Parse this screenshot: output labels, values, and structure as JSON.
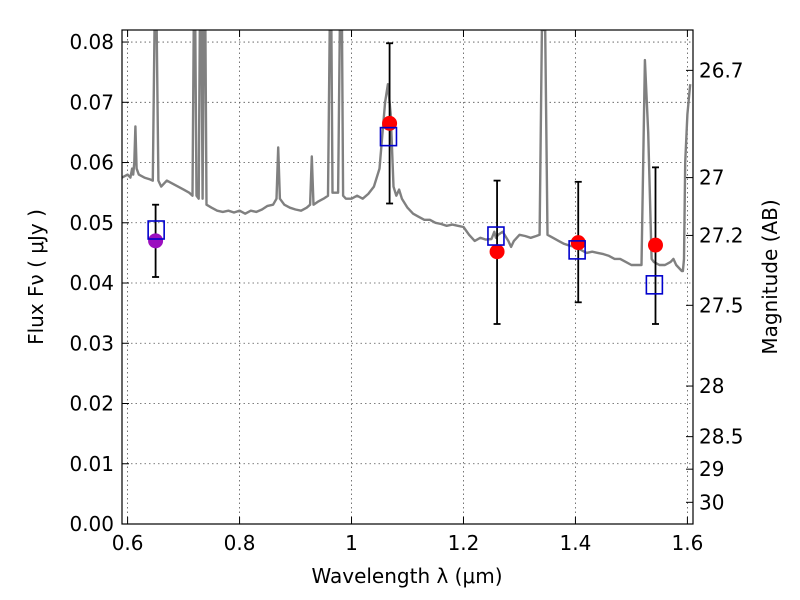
{
  "chart_data": {
    "type": "scatter",
    "xlabel": "Wavelength  λ (μm)",
    "ylabel": "Flux  Fν ( μJy )",
    "y2label": "Magnitude (AB)",
    "xlim": [
      0.59,
      1.61
    ],
    "ylim": [
      0.0,
      0.082
    ],
    "grid": true,
    "legend": "none",
    "x_ticks": [
      0.6,
      0.8,
      1.0,
      1.2,
      1.4,
      1.6
    ],
    "x_tick_labels": [
      "0.6",
      "0.8",
      "1",
      "1.2",
      "1.4",
      "1.6"
    ],
    "y_ticks": [
      0.0,
      0.01,
      0.02,
      0.03,
      0.04,
      0.05,
      0.06,
      0.07,
      0.08
    ],
    "y_tick_labels": [
      "0.00",
      "0.01",
      "0.02",
      "0.03",
      "0.04",
      "0.05",
      "0.06",
      "0.07",
      "0.08"
    ],
    "right_ticks": [
      {
        "label": "26.7",
        "flux": 0.0753
      },
      {
        "label": "27",
        "flux": 0.0575
      },
      {
        "label": "27.2",
        "flux": 0.0479
      },
      {
        "label": "27.5",
        "flux": 0.0363
      },
      {
        "label": "28",
        "flux": 0.0229
      },
      {
        "label": "28.5",
        "flux": 0.0145
      },
      {
        "label": "29",
        "flux": 0.0091
      },
      {
        "label": "30",
        "flux": 0.0036
      }
    ],
    "colors": {
      "spectrum": "#808080",
      "observed": "#ff0000",
      "observed_first": "#9b0fbf",
      "model_box": "#0000cc",
      "errorbar": "#000000",
      "grid": "#555555"
    },
    "model_spectrum": [
      [
        0.59,
        0.0575
      ],
      [
        0.6,
        0.058
      ],
      [
        0.605,
        0.0575
      ],
      [
        0.608,
        0.059
      ],
      [
        0.61,
        0.058
      ],
      [
        0.612,
        0.06
      ],
      [
        0.614,
        0.066
      ],
      [
        0.616,
        0.059
      ],
      [
        0.62,
        0.058
      ],
      [
        0.63,
        0.0575
      ],
      [
        0.64,
        0.0572
      ],
      [
        0.645,
        0.057
      ],
      [
        0.648,
        0.082
      ],
      [
        0.652,
        0.082
      ],
      [
        0.655,
        0.057
      ],
      [
        0.66,
        0.056
      ],
      [
        0.67,
        0.057
      ],
      [
        0.68,
        0.0565
      ],
      [
        0.69,
        0.056
      ],
      [
        0.7,
        0.0555
      ],
      [
        0.71,
        0.055
      ],
      [
        0.716,
        0.0545
      ],
      [
        0.718,
        0.082
      ],
      [
        0.721,
        0.082
      ],
      [
        0.723,
        0.0545
      ],
      [
        0.727,
        0.054
      ],
      [
        0.729,
        0.082
      ],
      [
        0.732,
        0.082
      ],
      [
        0.734,
        0.054
      ],
      [
        0.736,
        0.082
      ],
      [
        0.739,
        0.082
      ],
      [
        0.741,
        0.053
      ],
      [
        0.75,
        0.0525
      ],
      [
        0.76,
        0.052
      ],
      [
        0.77,
        0.0518
      ],
      [
        0.78,
        0.052
      ],
      [
        0.79,
        0.0517
      ],
      [
        0.8,
        0.052
      ],
      [
        0.81,
        0.0515
      ],
      [
        0.82,
        0.052
      ],
      [
        0.83,
        0.0518
      ],
      [
        0.84,
        0.0522
      ],
      [
        0.85,
        0.0528
      ],
      [
        0.86,
        0.053
      ],
      [
        0.866,
        0.054
      ],
      [
        0.869,
        0.0625
      ],
      [
        0.872,
        0.054
      ],
      [
        0.88,
        0.053
      ],
      [
        0.89,
        0.0525
      ],
      [
        0.9,
        0.0522
      ],
      [
        0.91,
        0.052
      ],
      [
        0.92,
        0.0525
      ],
      [
        0.926,
        0.053
      ],
      [
        0.929,
        0.061
      ],
      [
        0.932,
        0.053
      ],
      [
        0.94,
        0.0535
      ],
      [
        0.95,
        0.054
      ],
      [
        0.958,
        0.0545
      ],
      [
        0.961,
        0.082
      ],
      [
        0.964,
        0.082
      ],
      [
        0.966,
        0.055
      ],
      [
        0.97,
        0.055
      ],
      [
        0.976,
        0.055
      ],
      [
        0.979,
        0.082
      ],
      [
        0.983,
        0.082
      ],
      [
        0.985,
        0.0545
      ],
      [
        0.99,
        0.054
      ],
      [
        1.0,
        0.054
      ],
      [
        1.01,
        0.0545
      ],
      [
        1.02,
        0.054
      ],
      [
        1.03,
        0.0548
      ],
      [
        1.04,
        0.056
      ],
      [
        1.05,
        0.059
      ],
      [
        1.06,
        0.07
      ],
      [
        1.065,
        0.073
      ],
      [
        1.07,
        0.068
      ],
      [
        1.075,
        0.056
      ],
      [
        1.08,
        0.0545
      ],
      [
        1.085,
        0.0555
      ],
      [
        1.09,
        0.054
      ],
      [
        1.1,
        0.0525
      ],
      [
        1.11,
        0.0515
      ],
      [
        1.12,
        0.051
      ],
      [
        1.13,
        0.0505
      ],
      [
        1.14,
        0.0505
      ],
      [
        1.15,
        0.05
      ],
      [
        1.16,
        0.0498
      ],
      [
        1.17,
        0.0495
      ],
      [
        1.18,
        0.0497
      ],
      [
        1.19,
        0.0495
      ],
      [
        1.2,
        0.0493
      ],
      [
        1.21,
        0.048
      ],
      [
        1.22,
        0.047
      ],
      [
        1.23,
        0.0475
      ],
      [
        1.24,
        0.0472
      ],
      [
        1.25,
        0.0473
      ],
      [
        1.255,
        0.0485
      ],
      [
        1.258,
        0.0475
      ],
      [
        1.262,
        0.048
      ],
      [
        1.27,
        0.0485
      ],
      [
        1.28,
        0.047
      ],
      [
        1.285,
        0.046
      ],
      [
        1.29,
        0.047
      ],
      [
        1.3,
        0.048
      ],
      [
        1.31,
        0.0478
      ],
      [
        1.32,
        0.0475
      ],
      [
        1.33,
        0.0478
      ],
      [
        1.336,
        0.048
      ],
      [
        1.34,
        0.082
      ],
      [
        1.346,
        0.082
      ],
      [
        1.35,
        0.048
      ],
      [
        1.36,
        0.0475
      ],
      [
        1.37,
        0.047
      ],
      [
        1.38,
        0.0465
      ],
      [
        1.39,
        0.0462
      ],
      [
        1.4,
        0.046
      ],
      [
        1.41,
        0.0455
      ],
      [
        1.42,
        0.045
      ],
      [
        1.43,
        0.0452
      ],
      [
        1.44,
        0.045
      ],
      [
        1.45,
        0.0448
      ],
      [
        1.46,
        0.0445
      ],
      [
        1.47,
        0.044
      ],
      [
        1.48,
        0.044
      ],
      [
        1.49,
        0.0435
      ],
      [
        1.5,
        0.043
      ],
      [
        1.51,
        0.043
      ],
      [
        1.518,
        0.043
      ],
      [
        1.524,
        0.077
      ],
      [
        1.53,
        0.065
      ],
      [
        1.536,
        0.044
      ],
      [
        1.54,
        0.0435
      ],
      [
        1.55,
        0.043
      ],
      [
        1.56,
        0.043
      ],
      [
        1.57,
        0.0435
      ],
      [
        1.575,
        0.044
      ],
      [
        1.58,
        0.043
      ],
      [
        1.585,
        0.0425
      ],
      [
        1.59,
        0.042
      ],
      [
        1.592,
        0.042
      ],
      [
        1.594,
        0.044
      ],
      [
        1.596,
        0.06
      ],
      [
        1.6,
        0.068
      ],
      [
        1.605,
        0.073
      ]
    ],
    "observed": [
      {
        "x": 0.65,
        "y": 0.047,
        "yerr_low": 0.041,
        "yerr_high": 0.053
      },
      {
        "x": 1.068,
        "y": 0.0665,
        "yerr_low": 0.0532,
        "yerr_high": 0.0798
      },
      {
        "x": 1.26,
        "y": 0.0452,
        "yerr_low": 0.0332,
        "yerr_high": 0.057
      },
      {
        "x": 1.405,
        "y": 0.0467,
        "yerr_low": 0.0368,
        "yerr_high": 0.0568
      },
      {
        "x": 1.543,
        "y": 0.0463,
        "yerr_low": 0.0332,
        "yerr_high": 0.0592
      }
    ],
    "model_points": [
      {
        "x": 0.651,
        "y": 0.0488
      },
      {
        "x": 1.066,
        "y": 0.0643
      },
      {
        "x": 1.258,
        "y": 0.0478
      },
      {
        "x": 1.403,
        "y": 0.0455
      },
      {
        "x": 1.541,
        "y": 0.0397
      }
    ]
  }
}
